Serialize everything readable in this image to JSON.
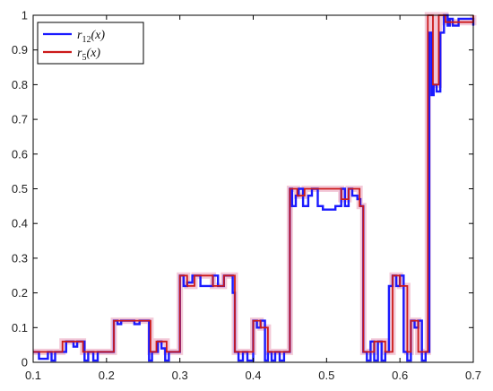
{
  "chart_data": {
    "type": "line",
    "title": "",
    "xlabel": "",
    "ylabel": "",
    "xlim": [
      0.1,
      0.7
    ],
    "ylim": [
      0,
      1
    ],
    "grid": false,
    "legend_placement": "top-left",
    "x_tick_labels": [
      "0.1",
      "0.2",
      "0.3",
      "0.4",
      "0.5",
      "0.6",
      "0.7"
    ],
    "y_tick_labels": [
      "0",
      "0.1",
      "0.2",
      "0.3",
      "0.4",
      "0.5",
      "0.6",
      "0.7",
      "0.8",
      "0.9",
      "1"
    ],
    "colors": {
      "r12": "#1a1aff",
      "r5": "#cc1a1a",
      "r5_shadow": "#f3c9d8",
      "axis": "#000000",
      "background": "#ffffff"
    },
    "series": [
      {
        "name": "r12(x)",
        "legend_base": "r",
        "legend_sub": "12",
        "legend_arg": "(x)",
        "color": "#1a1aff",
        "x": [
          0.1,
          0.105,
          0.108,
          0.115,
          0.12,
          0.125,
          0.13,
          0.14,
          0.145,
          0.15,
          0.155,
          0.16,
          0.165,
          0.17,
          0.175,
          0.182,
          0.188,
          0.195,
          0.21,
          0.215,
          0.22,
          0.226,
          0.232,
          0.238,
          0.245,
          0.251,
          0.258,
          0.262,
          0.265,
          0.27,
          0.275,
          0.28,
          0.285,
          0.29,
          0.3,
          0.305,
          0.31,
          0.317,
          0.322,
          0.328,
          0.335,
          0.345,
          0.352,
          0.36,
          0.366,
          0.372,
          0.375,
          0.38,
          0.386,
          0.392,
          0.4,
          0.405,
          0.41,
          0.416,
          0.42,
          0.425,
          0.43,
          0.436,
          0.442,
          0.45,
          0.453,
          0.458,
          0.462,
          0.468,
          0.475,
          0.48,
          0.488,
          0.495,
          0.505,
          0.512,
          0.52,
          0.525,
          0.53,
          0.535,
          0.542,
          0.546,
          0.55,
          0.555,
          0.56,
          0.565,
          0.57,
          0.575,
          0.58,
          0.585,
          0.59,
          0.595,
          0.6,
          0.605,
          0.61,
          0.615,
          0.62,
          0.625,
          0.63,
          0.635,
          0.637,
          0.64,
          0.643,
          0.646,
          0.65,
          0.655,
          0.66,
          0.665,
          0.668,
          0.672,
          0.68,
          0.7
        ],
        "values": [
          0.03,
          0.03,
          0.01,
          0.01,
          0.03,
          0.005,
          0.03,
          0.03,
          0.06,
          0.06,
          0.045,
          0.06,
          0.06,
          0.005,
          0.03,
          0.005,
          0.03,
          0.03,
          0.12,
          0.11,
          0.12,
          0.12,
          0.12,
          0.11,
          0.12,
          0.12,
          0.005,
          0.03,
          0.03,
          0.06,
          0.04,
          0.005,
          0.03,
          0.03,
          0.25,
          0.22,
          0.23,
          0.25,
          0.25,
          0.22,
          0.22,
          0.25,
          0.22,
          0.25,
          0.25,
          0.2,
          0.03,
          0.005,
          0.03,
          0.005,
          0.12,
          0.1,
          0.12,
          0.005,
          0.03,
          0.005,
          0.03,
          0.005,
          0.03,
          0.5,
          0.45,
          0.48,
          0.5,
          0.45,
          0.48,
          0.5,
          0.45,
          0.44,
          0.44,
          0.45,
          0.5,
          0.45,
          0.5,
          0.48,
          0.47,
          0.45,
          0.03,
          0.005,
          0.06,
          0.005,
          0.06,
          0.005,
          0.03,
          0.22,
          0.25,
          0.22,
          0.25,
          0.03,
          0.005,
          0.12,
          0.1,
          0.12,
          0.005,
          0.03,
          0.03,
          0.95,
          0.77,
          0.8,
          0.78,
          0.95,
          1.0,
          0.97,
          0.99,
          0.97,
          0.99,
          0.97
        ]
      },
      {
        "name": "r5(x)",
        "legend_base": "r",
        "legend_sub": "5",
        "legend_arg": "(x)",
        "color": "#cc1a1a",
        "x": [
          0.1,
          0.14,
          0.168,
          0.21,
          0.26,
          0.268,
          0.282,
          0.3,
          0.31,
          0.32,
          0.345,
          0.36,
          0.375,
          0.4,
          0.41,
          0.42,
          0.45,
          0.46,
          0.47,
          0.49,
          0.52,
          0.53,
          0.545,
          0.55,
          0.565,
          0.58,
          0.59,
          0.6,
          0.61,
          0.615,
          0.625,
          0.638,
          0.645,
          0.653,
          0.662,
          0.7
        ],
        "values": [
          0.03,
          0.06,
          0.03,
          0.12,
          0.03,
          0.06,
          0.03,
          0.25,
          0.22,
          0.25,
          0.22,
          0.25,
          0.03,
          0.12,
          0.1,
          0.03,
          0.5,
          0.48,
          0.5,
          0.5,
          0.47,
          0.5,
          0.45,
          0.03,
          0.06,
          0.03,
          0.25,
          0.22,
          0.03,
          0.12,
          0.03,
          1.0,
          0.8,
          1.0,
          0.98,
          1.0
        ]
      }
    ]
  }
}
